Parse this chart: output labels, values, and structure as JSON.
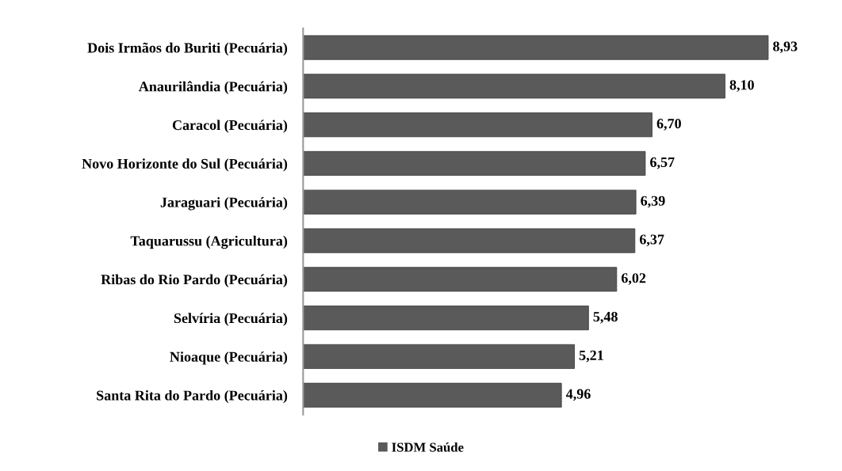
{
  "chart_data": {
    "type": "bar",
    "orientation": "horizontal",
    "categories": [
      "Dois Irmãos do Buriti (Pecuária)",
      "Anaurilândia (Pecuária)",
      "Caracol (Pecuária)",
      "Novo Horizonte do Sul (Pecuária)",
      "Jaraguari (Pecuária)",
      "Taquarussu (Agricultura)",
      "Ribas do Rio Pardo (Pecuária)",
      "Selvíria (Pecuária)",
      "Nioaque (Pecuária)",
      "Santa Rita do Pardo (Pecuária)"
    ],
    "series": [
      {
        "name": "ISDM Saúde",
        "color": "#5a5a5a",
        "values": [
          8.93,
          8.1,
          6.7,
          6.57,
          6.39,
          6.37,
          6.02,
          5.48,
          5.21,
          4.96
        ],
        "value_labels": [
          "8,93",
          "8,10",
          "6,70",
          "6,57",
          "6,39",
          "6,37",
          "6,02",
          "5,48",
          "5,21",
          "4,96"
        ]
      }
    ],
    "legend": "bottom",
    "grid": false
  }
}
